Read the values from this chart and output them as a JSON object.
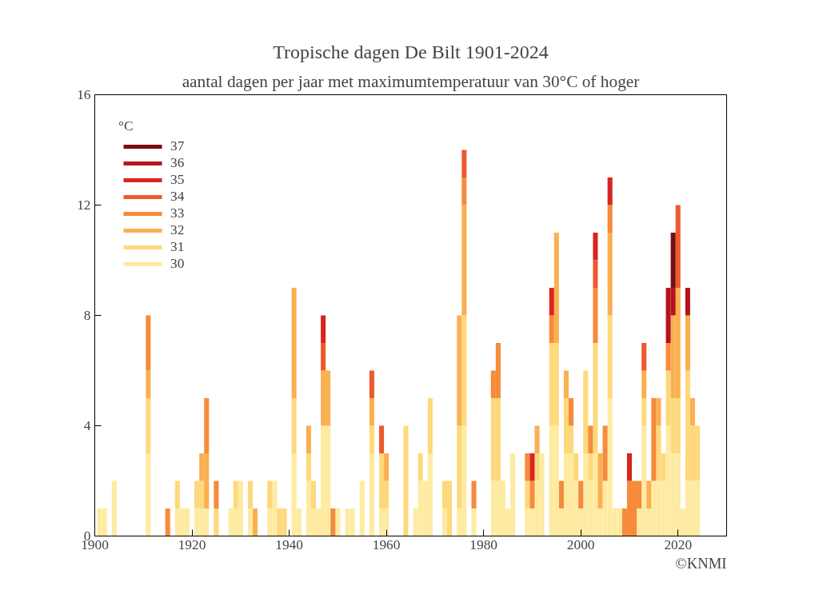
{
  "chart_data": {
    "type": "bar",
    "stacked": true,
    "title": "Tropische dagen De Bilt 1901-2024",
    "subtitle": "aantal dagen per jaar met maximumtemperatuur van 30°C of hoger",
    "legend_title": "°C",
    "legend": "top left",
    "grid": false,
    "xlim": [
      1900,
      2030
    ],
    "xticks": [
      1900,
      1920,
      1940,
      1960,
      1980,
      2000,
      2020
    ],
    "ylim": [
      0,
      16
    ],
    "yticks": [
      0,
      4,
      8,
      12,
      16
    ],
    "annotations": [
      "©KNMI"
    ],
    "x": [
      1901,
      1902,
      1903,
      1904,
      1905,
      1906,
      1907,
      1908,
      1909,
      1910,
      1911,
      1912,
      1913,
      1914,
      1915,
      1916,
      1917,
      1918,
      1919,
      1920,
      1921,
      1922,
      1923,
      1924,
      1925,
      1926,
      1927,
      1928,
      1929,
      1930,
      1931,
      1932,
      1933,
      1934,
      1935,
      1936,
      1937,
      1938,
      1939,
      1940,
      1941,
      1942,
      1943,
      1944,
      1945,
      1946,
      1947,
      1948,
      1949,
      1950,
      1951,
      1952,
      1953,
      1954,
      1955,
      1956,
      1957,
      1958,
      1959,
      1960,
      1961,
      1962,
      1963,
      1964,
      1965,
      1966,
      1967,
      1968,
      1969,
      1970,
      1971,
      1972,
      1973,
      1974,
      1975,
      1976,
      1977,
      1978,
      1979,
      1980,
      1981,
      1982,
      1983,
      1984,
      1985,
      1986,
      1987,
      1988,
      1989,
      1990,
      1991,
      1992,
      1993,
      1994,
      1995,
      1996,
      1997,
      1998,
      1999,
      2000,
      2001,
      2002,
      2003,
      2004,
      2005,
      2006,
      2007,
      2008,
      2009,
      2010,
      2011,
      2012,
      2013,
      2014,
      2015,
      2016,
      2017,
      2018,
      2019,
      2020,
      2021,
      2022,
      2023,
      2024
    ],
    "series": [
      {
        "name": "30",
        "color": "#feeba1",
        "values": [
          1,
          1,
          0,
          2,
          0,
          0,
          0,
          0,
          0,
          0,
          3,
          0,
          0,
          0,
          0,
          0,
          1,
          1,
          1,
          0,
          1,
          1,
          1,
          0,
          0,
          0,
          0,
          1,
          1,
          2,
          0,
          1,
          0,
          0,
          0,
          1,
          2,
          0,
          0,
          0,
          3,
          1,
          0,
          2,
          1,
          1,
          4,
          4,
          0,
          1,
          0,
          1,
          1,
          0,
          2,
          0,
          3,
          0,
          1,
          1,
          0,
          0,
          0,
          0,
          0,
          1,
          2,
          2,
          3,
          0,
          0,
          1,
          0,
          0,
          1,
          4,
          0,
          1,
          0,
          0,
          0,
          2,
          2,
          2,
          1,
          3,
          0,
          0,
          1,
          1,
          2,
          3,
          0,
          4,
          4,
          1,
          3,
          3,
          2,
          1,
          3,
          2,
          3,
          1,
          2,
          5,
          1,
          1,
          0,
          0,
          0,
          1,
          4,
          1,
          2,
          2,
          2,
          4,
          3,
          3,
          1,
          2,
          2,
          2
        ]
      },
      {
        "name": "31",
        "color": "#fdd97b",
        "values": [
          0,
          0,
          0,
          0,
          0,
          0,
          0,
          0,
          0,
          0,
          2,
          0,
          0,
          0,
          0,
          0,
          1,
          0,
          0,
          0,
          1,
          1,
          0,
          0,
          1,
          0,
          0,
          0,
          1,
          0,
          0,
          1,
          0,
          0,
          0,
          1,
          0,
          1,
          1,
          0,
          2,
          0,
          0,
          1,
          1,
          0,
          0,
          0,
          0,
          0,
          0,
          0,
          0,
          0,
          0,
          0,
          1,
          0,
          2,
          1,
          0,
          0,
          0,
          4,
          0,
          0,
          1,
          0,
          2,
          0,
          0,
          1,
          2,
          0,
          3,
          4,
          0,
          0,
          0,
          0,
          0,
          3,
          3,
          0,
          0,
          0,
          0,
          0,
          1,
          0,
          1,
          0,
          0,
          3,
          3,
          0,
          2,
          1,
          1,
          0,
          3,
          1,
          4,
          0,
          0,
          3,
          0,
          0,
          0,
          0,
          0,
          0,
          1,
          0,
          0,
          2,
          1,
          2,
          2,
          2,
          0,
          4,
          2,
          2
        ]
      },
      {
        "name": "32",
        "color": "#fab050",
        "values": [
          0,
          0,
          0,
          0,
          0,
          0,
          0,
          0,
          0,
          0,
          1,
          0,
          0,
          0,
          0,
          0,
          0,
          0,
          0,
          0,
          0,
          1,
          2,
          0,
          0,
          0,
          0,
          0,
          0,
          0,
          0,
          0,
          1,
          0,
          0,
          0,
          0,
          0,
          0,
          0,
          4,
          0,
          0,
          1,
          0,
          0,
          2,
          2,
          0,
          0,
          0,
          0,
          0,
          0,
          0,
          0,
          1,
          0,
          0,
          1,
          0,
          0,
          0,
          0,
          0,
          0,
          0,
          0,
          0,
          0,
          0,
          0,
          0,
          0,
          4,
          4,
          0,
          0,
          0,
          0,
          0,
          0,
          0,
          0,
          0,
          0,
          0,
          0,
          0,
          0,
          1,
          0,
          0,
          0,
          4,
          0,
          1,
          0,
          0,
          0,
          0,
          0,
          0,
          2,
          0,
          3,
          0,
          0,
          0,
          0,
          0,
          0,
          1,
          1,
          0,
          1,
          0,
          0,
          3,
          4,
          0,
          2,
          1,
          0
        ]
      },
      {
        "name": "33",
        "color": "#f68b3b",
        "values": [
          0,
          0,
          0,
          0,
          0,
          0,
          0,
          0,
          0,
          0,
          2,
          0,
          0,
          0,
          1,
          0,
          0,
          0,
          0,
          0,
          0,
          0,
          2,
          0,
          1,
          0,
          0,
          0,
          0,
          0,
          0,
          0,
          0,
          0,
          0,
          0,
          0,
          0,
          0,
          0,
          0,
          0,
          0,
          0,
          0,
          0,
          0,
          0,
          1,
          0,
          0,
          0,
          0,
          0,
          0,
          0,
          0,
          0,
          0,
          0,
          0,
          0,
          0,
          0,
          0,
          0,
          0,
          0,
          0,
          0,
          0,
          0,
          0,
          0,
          0,
          1,
          0,
          1,
          0,
          0,
          0,
          1,
          2,
          0,
          0,
          0,
          0,
          0,
          1,
          1,
          0,
          0,
          0,
          1,
          0,
          1,
          0,
          1,
          0,
          1,
          0,
          1,
          2,
          0,
          2,
          1,
          0,
          0,
          1,
          2,
          2,
          1,
          0,
          0,
          3,
          0,
          0,
          1,
          0,
          0,
          0,
          0,
          0,
          0
        ]
      },
      {
        "name": "34",
        "color": "#ec5a2f",
        "values": [
          0,
          0,
          0,
          0,
          0,
          0,
          0,
          0,
          0,
          0,
          0,
          0,
          0,
          0,
          0,
          0,
          0,
          0,
          0,
          0,
          0,
          0,
          0,
          0,
          0,
          0,
          0,
          0,
          0,
          0,
          0,
          0,
          0,
          0,
          0,
          0,
          0,
          0,
          0,
          0,
          0,
          0,
          0,
          0,
          0,
          0,
          1,
          0,
          0,
          0,
          0,
          0,
          0,
          0,
          0,
          0,
          1,
          0,
          1,
          0,
          0,
          0,
          0,
          0,
          0,
          0,
          0,
          0,
          0,
          0,
          0,
          0,
          0,
          0,
          0,
          1,
          0,
          0,
          0,
          0,
          0,
          0,
          0,
          0,
          0,
          0,
          0,
          0,
          0,
          0,
          0,
          0,
          0,
          0,
          0,
          0,
          0,
          0,
          0,
          0,
          0,
          0,
          1,
          0,
          0,
          0,
          0,
          0,
          0,
          0,
          0,
          0,
          1,
          0,
          0,
          0,
          0,
          0,
          0,
          3,
          0,
          0,
          0,
          0
        ]
      },
      {
        "name": "35",
        "color": "#d6261f",
        "values": [
          0,
          0,
          0,
          0,
          0,
          0,
          0,
          0,
          0,
          0,
          0,
          0,
          0,
          0,
          0,
          0,
          0,
          0,
          0,
          0,
          0,
          0,
          0,
          0,
          0,
          0,
          0,
          0,
          0,
          0,
          0,
          0,
          0,
          0,
          0,
          0,
          0,
          0,
          0,
          0,
          0,
          0,
          0,
          0,
          0,
          0,
          1,
          0,
          0,
          0,
          0,
          0,
          0,
          0,
          0,
          0,
          0,
          0,
          0,
          0,
          0,
          0,
          0,
          0,
          0,
          0,
          0,
          0,
          0,
          0,
          0,
          0,
          0,
          0,
          0,
          0,
          0,
          0,
          0,
          0,
          0,
          0,
          0,
          0,
          0,
          0,
          0,
          0,
          0,
          1,
          0,
          0,
          0,
          1,
          0,
          0,
          0,
          0,
          0,
          0,
          0,
          0,
          1,
          0,
          0,
          1,
          0,
          0,
          0,
          1,
          0,
          0,
          0,
          0,
          0,
          0,
          0,
          0,
          0,
          0,
          0,
          0,
          0,
          0
        ]
      },
      {
        "name": "36",
        "color": "#b5141c",
        "values": [
          0,
          0,
          0,
          0,
          0,
          0,
          0,
          0,
          0,
          0,
          0,
          0,
          0,
          0,
          0,
          0,
          0,
          0,
          0,
          0,
          0,
          0,
          0,
          0,
          0,
          0,
          0,
          0,
          0,
          0,
          0,
          0,
          0,
          0,
          0,
          0,
          0,
          0,
          0,
          0,
          0,
          0,
          0,
          0,
          0,
          0,
          0,
          0,
          0,
          0,
          0,
          0,
          0,
          0,
          0,
          0,
          0,
          0,
          0,
          0,
          0,
          0,
          0,
          0,
          0,
          0,
          0,
          0,
          0,
          0,
          0,
          0,
          0,
          0,
          0,
          0,
          0,
          0,
          0,
          0,
          0,
          0,
          0,
          0,
          0,
          0,
          0,
          0,
          0,
          0,
          0,
          0,
          0,
          0,
          0,
          0,
          0,
          0,
          0,
          0,
          0,
          0,
          0,
          0,
          0,
          0,
          0,
          0,
          0,
          0,
          0,
          0,
          0,
          0,
          0,
          0,
          0,
          2,
          1,
          0,
          0,
          1,
          0,
          0
        ]
      },
      {
        "name": "37",
        "color": "#7a0c14",
        "values": [
          0,
          0,
          0,
          0,
          0,
          0,
          0,
          0,
          0,
          0,
          0,
          0,
          0,
          0,
          0,
          0,
          0,
          0,
          0,
          0,
          0,
          0,
          0,
          0,
          0,
          0,
          0,
          0,
          0,
          0,
          0,
          0,
          0,
          0,
          0,
          0,
          0,
          0,
          0,
          0,
          0,
          0,
          0,
          0,
          0,
          0,
          0,
          0,
          0,
          0,
          0,
          0,
          0,
          0,
          0,
          0,
          0,
          0,
          0,
          0,
          0,
          0,
          0,
          0,
          0,
          0,
          0,
          0,
          0,
          0,
          0,
          0,
          0,
          0,
          0,
          0,
          0,
          0,
          0,
          0,
          0,
          0,
          0,
          0,
          0,
          0,
          0,
          0,
          0,
          0,
          0,
          0,
          0,
          0,
          0,
          0,
          0,
          0,
          0,
          0,
          0,
          0,
          0,
          0,
          0,
          0,
          0,
          0,
          0,
          0,
          0,
          0,
          0,
          0,
          0,
          0,
          0,
          0,
          2,
          0,
          0,
          0,
          0,
          0
        ]
      }
    ]
  }
}
